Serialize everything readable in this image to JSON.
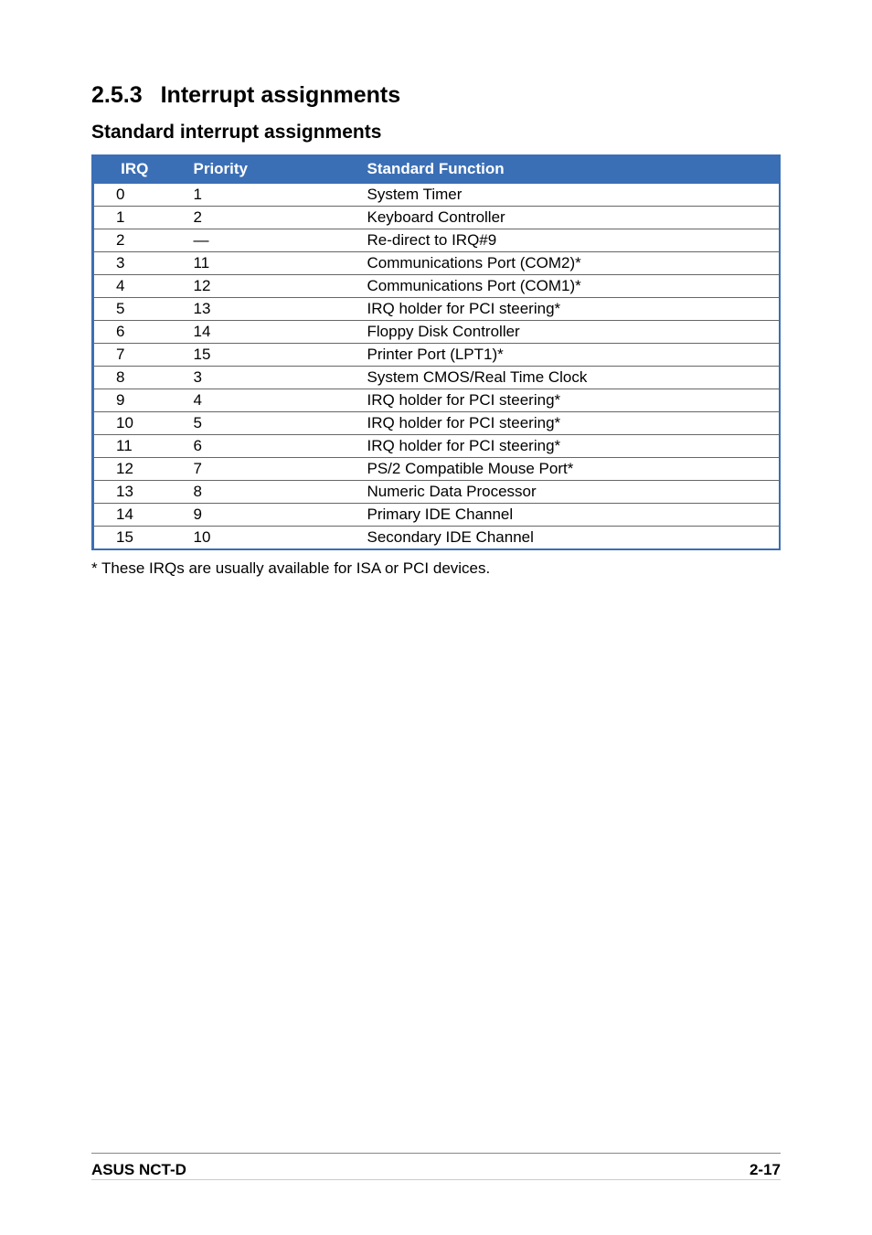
{
  "heading": {
    "number": "2.5.3",
    "title": "Interrupt assignments"
  },
  "subheading": "Standard interrupt assignments",
  "table": {
    "headers": {
      "irq": "IRQ",
      "priority": "Priority",
      "func": "Standard Function"
    },
    "rows": [
      {
        "irq": "0",
        "priority": "1",
        "func": "System Timer"
      },
      {
        "irq": "1",
        "priority": "2",
        "func": "Keyboard Controller"
      },
      {
        "irq": "2",
        "priority": "—",
        "func": "Re-direct to IRQ#9"
      },
      {
        "irq": "3",
        "priority": "11",
        "func": "Communications Port (COM2)*"
      },
      {
        "irq": "4",
        "priority": "12",
        "func": "Communications Port (COM1)*"
      },
      {
        "irq": "5",
        "priority": "13",
        "func": "IRQ holder for PCI steering*"
      },
      {
        "irq": "6",
        "priority": "14",
        "func": "Floppy Disk Controller"
      },
      {
        "irq": "7",
        "priority": "15",
        "func": "Printer Port (LPT1)*"
      },
      {
        "irq": "8",
        "priority": "3",
        "func": "System CMOS/Real Time Clock"
      },
      {
        "irq": "9",
        "priority": "4",
        "func": "IRQ holder for PCI steering*"
      },
      {
        "irq": "10",
        "priority": "5",
        "func": "IRQ holder for PCI steering*"
      },
      {
        "irq": "11",
        "priority": "6",
        "func": "IRQ holder for PCI steering*"
      },
      {
        "irq": "12",
        "priority": "7",
        "func": "PS/2 Compatible Mouse Port*"
      },
      {
        "irq": "13",
        "priority": "8",
        "func": "Numeric Data Processor"
      },
      {
        "irq": "14",
        "priority": "9",
        "func": "Primary IDE Channel"
      },
      {
        "irq": "15",
        "priority": "10",
        "func": "Secondary IDE Channel"
      }
    ]
  },
  "footnote": "* These IRQs are usually available for ISA or PCI devices.",
  "footer": {
    "left": "ASUS NCT-D",
    "right": "2-17"
  },
  "colors": {
    "header_bg": "#3b6fb5",
    "header_text": "#ffffff",
    "border": "#3b6fb5",
    "row_border": "#666666",
    "text": "#000000"
  }
}
